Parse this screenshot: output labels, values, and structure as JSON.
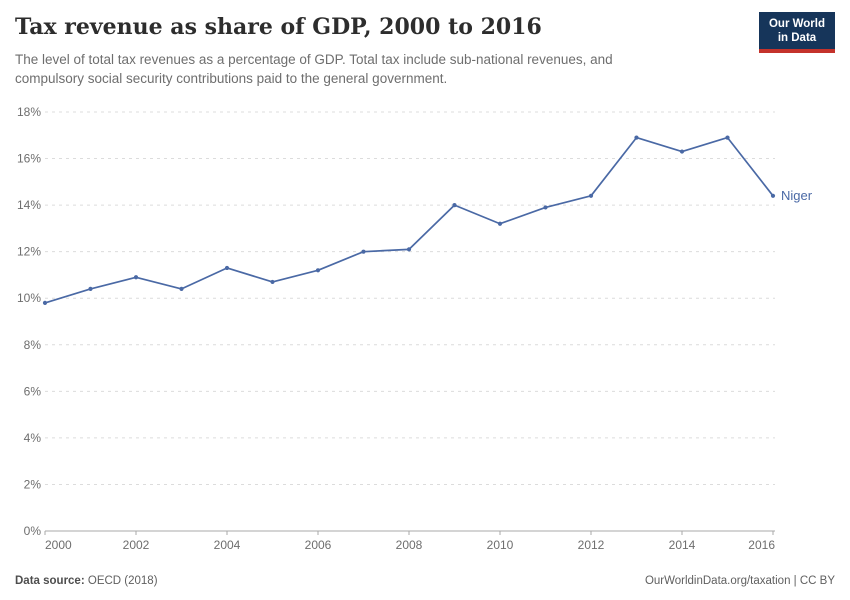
{
  "header": {
    "title": "Tax revenue as share of GDP, 2000 to 2016",
    "subtitle_lines": [
      "The level of total tax revenues as a percentage of GDP. Total tax include sub-national revenues, and",
      "compulsory social security contributions paid to the general government."
    ],
    "logo": {
      "line1": "Our World",
      "line2": "in Data",
      "bg_color": "#16355a",
      "stripe_color": "#c4322b"
    }
  },
  "chart_data": {
    "type": "line",
    "title": "Tax revenue as share of GDP, 2000 to 2016",
    "x": [
      2000,
      2001,
      2002,
      2003,
      2004,
      2005,
      2006,
      2007,
      2008,
      2009,
      2010,
      2011,
      2012,
      2013,
      2014,
      2015,
      2016
    ],
    "series": [
      {
        "name": "Niger",
        "color": "#4a69a5",
        "values": [
          9.8,
          10.4,
          10.9,
          10.4,
          11.3,
          10.7,
          11.2,
          12.0,
          12.1,
          14.0,
          13.2,
          13.9,
          14.4,
          16.9,
          16.3,
          16.9,
          14.4
        ]
      }
    ],
    "xlim": [
      2000,
      2016
    ],
    "ylim": [
      0,
      18
    ],
    "x_ticks": [
      2000,
      2002,
      2004,
      2006,
      2008,
      2010,
      2012,
      2014,
      2016
    ],
    "y_ticks": [
      0,
      2,
      4,
      6,
      8,
      10,
      12,
      14,
      16,
      18
    ],
    "y_tick_labels": [
      "0%",
      "2%",
      "4%",
      "6%",
      "8%",
      "10%",
      "12%",
      "14%",
      "16%",
      "18%"
    ],
    "xlabel": "",
    "ylabel": "",
    "grid": "horizontal-dashed",
    "legend_position": "end-of-line-label"
  },
  "footer": {
    "source_label": "Data source:",
    "source_value": "OECD (2018)",
    "right_text": "OurWorldinData.org/taxation | CC BY"
  },
  "colors": {
    "line": "#4a69a5",
    "grid": "#dcdcdc",
    "axis": "#a8a8a8",
    "tick_label": "#6e6e6e"
  }
}
